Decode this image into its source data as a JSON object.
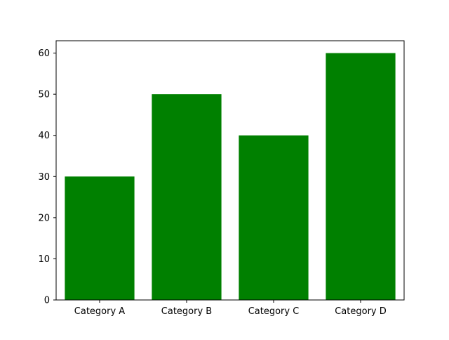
{
  "chart_data": {
    "type": "bar",
    "title": "",
    "xlabel": "",
    "ylabel": "",
    "categories": [
      "Category A",
      "Category B",
      "Category C",
      "Category D"
    ],
    "values": [
      30,
      50,
      40,
      60
    ],
    "ylim": [
      0,
      63
    ],
    "yticks": [
      0,
      10,
      20,
      30,
      40,
      50,
      60
    ],
    "grid": false,
    "bar_color": "#008000",
    "axis_color": "#000000",
    "background": "#ffffff"
  }
}
